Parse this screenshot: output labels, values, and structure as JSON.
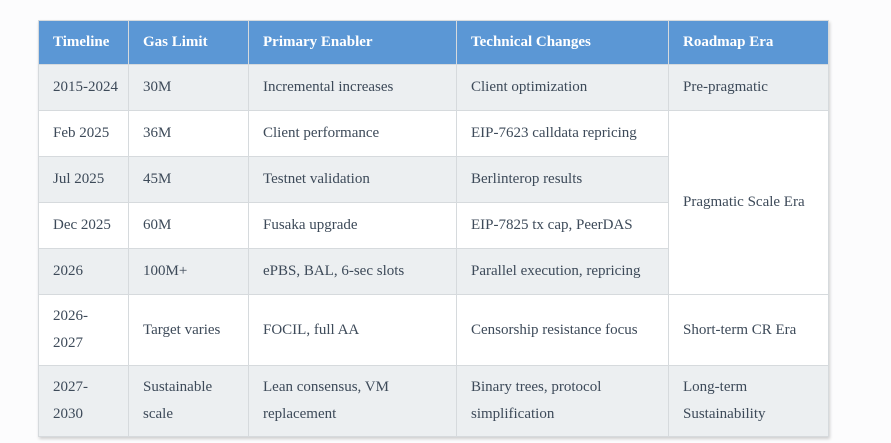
{
  "colors": {
    "header_bg": "#5b97d5",
    "header_text": "#ffffff",
    "row_bg": "#ffffff",
    "row_alt_bg": "#eceff1",
    "border": "#d6dadd",
    "text": "#3d4a59",
    "page_bg": "#fcfcfd"
  },
  "table": {
    "headers": [
      "Timeline",
      "Gas Limit",
      "Primary Enabler",
      "Technical Changes",
      "Roadmap Era"
    ],
    "rows": [
      {
        "timeline": "2015-2024",
        "gas_limit": "30M",
        "primary_enabler": "Incremental increases",
        "technical_changes": "Client optimization",
        "roadmap_era": "Pre-pragmatic"
      },
      {
        "timeline": "Feb 2025",
        "gas_limit": "36M",
        "primary_enabler": "Client performance",
        "technical_changes": "EIP-7623 calldata repricing",
        "roadmap_era": "Pragmatic Scale Era"
      },
      {
        "timeline": "Jul 2025",
        "gas_limit": "45M",
        "primary_enabler": "Testnet validation",
        "technical_changes": "Berlinterop results"
      },
      {
        "timeline": "Dec 2025",
        "gas_limit": "60M",
        "primary_enabler": "Fusaka upgrade",
        "technical_changes": "EIP-7825 tx cap, PeerDAS"
      },
      {
        "timeline": "2026",
        "gas_limit": "100M+",
        "primary_enabler": "ePBS, BAL, 6-sec slots",
        "technical_changes": "Parallel execution, repricing"
      },
      {
        "timeline": "2026-\n2027",
        "gas_limit": "Target varies",
        "primary_enabler": "FOCIL, full AA",
        "technical_changes": "Censorship resistance focus",
        "roadmap_era": "Short-term CR Era"
      },
      {
        "timeline": "2027-\n2030",
        "gas_limit": "Sustainable scale",
        "primary_enabler": "Lean consensus, VM replacement",
        "technical_changes": "Binary trees, protocol simplification",
        "roadmap_era": "Long-term Sustainability"
      }
    ]
  }
}
